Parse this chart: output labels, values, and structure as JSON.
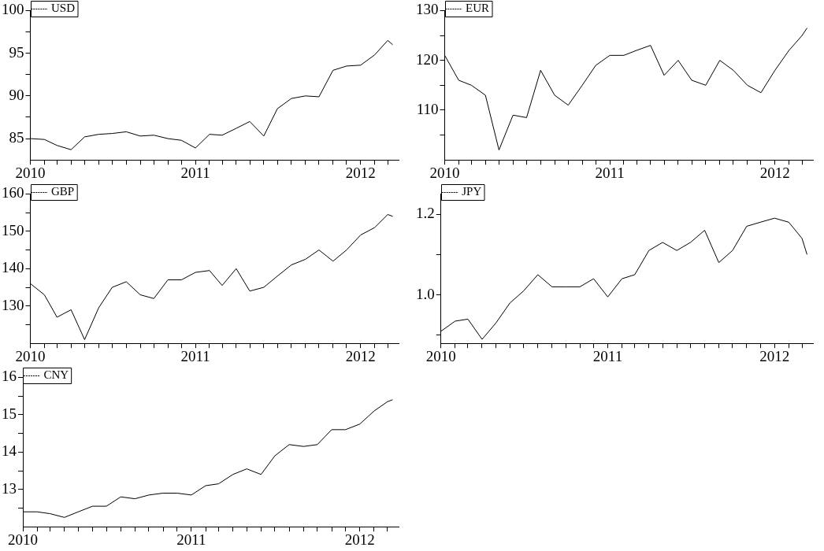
{
  "chart_data": [
    {
      "type": "line",
      "legend": "top left",
      "xlim": [
        "2010-01-01",
        "2012-03-25"
      ],
      "ylim": [
        82.5,
        100
      ],
      "yticks": [
        85,
        {
          "value": 87.5,
          "label": null
        },
        90,
        {
          "value": 92.5,
          "label": null
        },
        95,
        {
          "value": 97.5,
          "label": null
        },
        100
      ],
      "xticks": [
        "2010",
        {
          "value": "2010-02",
          "label": null
        },
        {
          "value": "2010-03",
          "label": null
        },
        {
          "value": "2010-04",
          "label": null
        },
        {
          "value": "2010-05",
          "label": null
        },
        {
          "value": "2010-06",
          "label": null
        },
        {
          "value": "2010-07",
          "label": null
        },
        {
          "value": "2010-08",
          "label": null
        },
        {
          "value": "2010-09",
          "label": null
        },
        {
          "value": "2010-10",
          "label": null
        },
        {
          "value": "2010-11",
          "label": null
        },
        {
          "value": "2010-12",
          "label": null
        },
        "2011",
        {
          "value": "2011-02",
          "label": null
        },
        {
          "value": "2011-03",
          "label": null
        },
        {
          "value": "2011-04",
          "label": null
        },
        {
          "value": "2011-05",
          "label": null
        },
        {
          "value": "2011-06",
          "label": null
        },
        {
          "value": "2011-07",
          "label": null
        },
        {
          "value": "2011-08",
          "label": null
        },
        {
          "value": "2011-09",
          "label": null
        },
        {
          "value": "2011-10",
          "label": null
        },
        {
          "value": "2011-11",
          "label": null
        },
        {
          "value": "2011-12",
          "label": null
        },
        "2012",
        {
          "value": "2012-02",
          "label": null
        },
        {
          "value": "2012-03",
          "label": null
        }
      ],
      "x": [
        "2010-01",
        "2010-02",
        "2010-03",
        "2010-04",
        "2010-05",
        "2010-06",
        "2010-07",
        "2010-08",
        "2010-09",
        "2010-10",
        "2010-11",
        "2010-12",
        "2011-01",
        "2011-02",
        "2011-03",
        "2011-04",
        "2011-05",
        "2011-06",
        "2011-07",
        "2011-08",
        "2011-09",
        "2011-10",
        "2011-11",
        "2011-12",
        "2012-01",
        "2012-02",
        "2012-03",
        "2012-03-12"
      ],
      "series": [
        {
          "name": "USD",
          "color": "#000000",
          "values": [
            85.0,
            84.9,
            84.2,
            83.7,
            85.2,
            85.5,
            85.6,
            85.8,
            85.3,
            85.4,
            85.0,
            84.8,
            83.9,
            85.5,
            85.4,
            86.2,
            87.0,
            85.3,
            88.5,
            89.7,
            90.0,
            89.9,
            93.0,
            93.5,
            93.6,
            94.8,
            96.5,
            96.0
          ]
        }
      ]
    },
    {
      "type": "line",
      "legend": "top left",
      "xlim": [
        "2010-01-01",
        "2012-03-25"
      ],
      "ylim": [
        100,
        130
      ],
      "yticks": [
        {
          "value": 105,
          "label": null
        },
        110,
        {
          "value": 115,
          "label": null
        },
        120,
        {
          "value": 125,
          "label": null
        },
        130
      ],
      "xticks": [
        "2010",
        {
          "value": "2010-02",
          "label": null
        },
        {
          "value": "2010-03",
          "label": null
        },
        {
          "value": "2010-04",
          "label": null
        },
        {
          "value": "2010-05",
          "label": null
        },
        {
          "value": "2010-06",
          "label": null
        },
        {
          "value": "2010-07",
          "label": null
        },
        {
          "value": "2010-08",
          "label": null
        },
        {
          "value": "2010-09",
          "label": null
        },
        {
          "value": "2010-10",
          "label": null
        },
        {
          "value": "2010-11",
          "label": null
        },
        {
          "value": "2010-12",
          "label": null
        },
        "2011",
        {
          "value": "2011-02",
          "label": null
        },
        {
          "value": "2011-03",
          "label": null
        },
        {
          "value": "2011-04",
          "label": null
        },
        {
          "value": "2011-05",
          "label": null
        },
        {
          "value": "2011-06",
          "label": null
        },
        {
          "value": "2011-07",
          "label": null
        },
        {
          "value": "2011-08",
          "label": null
        },
        {
          "value": "2011-09",
          "label": null
        },
        {
          "value": "2011-10",
          "label": null
        },
        {
          "value": "2011-11",
          "label": null
        },
        {
          "value": "2011-12",
          "label": null
        },
        "2012",
        {
          "value": "2012-02",
          "label": null
        },
        {
          "value": "2012-03",
          "label": null
        }
      ],
      "x": [
        "2010-01",
        "2010-02",
        "2010-03",
        "2010-04",
        "2010-05",
        "2010-06",
        "2010-07",
        "2010-08",
        "2010-09",
        "2010-10",
        "2010-11",
        "2010-12",
        "2011-01",
        "2011-02",
        "2011-03",
        "2011-04",
        "2011-05",
        "2011-06",
        "2011-07",
        "2011-08",
        "2011-09",
        "2011-10",
        "2011-11",
        "2011-12",
        "2012-01",
        "2012-02",
        "2012-03",
        "2012-03-12"
      ],
      "series": [
        {
          "name": "EUR",
          "color": "#000000",
          "values": [
            121,
            116,
            115,
            113,
            102,
            109,
            108.5,
            118,
            113,
            111,
            115,
            119,
            121,
            121,
            122,
            123,
            117,
            120,
            116,
            115,
            120,
            118,
            115,
            113.5,
            118,
            122,
            125,
            126.5
          ]
        }
      ]
    },
    {
      "type": "line",
      "legend": "top left",
      "xlim": [
        "2010-01-01",
        "2012-03-25"
      ],
      "ylim": [
        120,
        160
      ],
      "yticks": [
        {
          "value": 125,
          "label": null
        },
        130,
        {
          "value": 135,
          "label": null
        },
        140,
        {
          "value": 145,
          "label": null
        },
        150,
        {
          "value": 155,
          "label": null
        },
        160
      ],
      "xticks": [
        "2010",
        {
          "value": "2010-02",
          "label": null
        },
        {
          "value": "2010-03",
          "label": null
        },
        {
          "value": "2010-04",
          "label": null
        },
        {
          "value": "2010-05",
          "label": null
        },
        {
          "value": "2010-06",
          "label": null
        },
        {
          "value": "2010-07",
          "label": null
        },
        {
          "value": "2010-08",
          "label": null
        },
        {
          "value": "2010-09",
          "label": null
        },
        {
          "value": "2010-10",
          "label": null
        },
        {
          "value": "2010-11",
          "label": null
        },
        {
          "value": "2010-12",
          "label": null
        },
        "2011",
        {
          "value": "2011-02",
          "label": null
        },
        {
          "value": "2011-03",
          "label": null
        },
        {
          "value": "2011-04",
          "label": null
        },
        {
          "value": "2011-05",
          "label": null
        },
        {
          "value": "2011-06",
          "label": null
        },
        {
          "value": "2011-07",
          "label": null
        },
        {
          "value": "2011-08",
          "label": null
        },
        {
          "value": "2011-09",
          "label": null
        },
        {
          "value": "2011-10",
          "label": null
        },
        {
          "value": "2011-11",
          "label": null
        },
        {
          "value": "2011-12",
          "label": null
        },
        "2012",
        {
          "value": "2012-02",
          "label": null
        },
        {
          "value": "2012-03",
          "label": null
        }
      ],
      "x": [
        "2010-01",
        "2010-02",
        "2010-03",
        "2010-04",
        "2010-05",
        "2010-06",
        "2010-07",
        "2010-08",
        "2010-09",
        "2010-10",
        "2010-11",
        "2010-12",
        "2011-01",
        "2011-02",
        "2011-03",
        "2011-04",
        "2011-05",
        "2011-06",
        "2011-07",
        "2011-08",
        "2011-09",
        "2011-10",
        "2011-11",
        "2011-12",
        "2012-01",
        "2012-02",
        "2012-03",
        "2012-03-12"
      ],
      "series": [
        {
          "name": "GBP",
          "color": "#000000",
          "values": [
            136,
            133,
            127,
            129,
            121,
            129.5,
            135,
            136.5,
            133,
            132,
            137,
            137,
            139,
            139.5,
            135.5,
            140,
            134,
            135,
            138,
            141,
            142.5,
            145,
            142,
            145,
            149,
            151,
            154.5,
            154
          ]
        }
      ]
    },
    {
      "type": "line",
      "legend": "top left",
      "xlim": [
        "2010-01-01",
        "2012-03-25"
      ],
      "ylim": [
        0.88,
        1.25
      ],
      "yticks": [
        {
          "value": 0.9,
          "label": null
        },
        {
          "value": 1,
          "label": "1.0"
        },
        {
          "value": 1.1,
          "label": null
        },
        {
          "value": 1.2,
          "label": "1.2"
        }
      ],
      "xticks": [
        "2010",
        {
          "value": "2010-02",
          "label": null
        },
        {
          "value": "2010-03",
          "label": null
        },
        {
          "value": "2010-04",
          "label": null
        },
        {
          "value": "2010-05",
          "label": null
        },
        {
          "value": "2010-06",
          "label": null
        },
        {
          "value": "2010-07",
          "label": null
        },
        {
          "value": "2010-08",
          "label": null
        },
        {
          "value": "2010-09",
          "label": null
        },
        {
          "value": "2010-10",
          "label": null
        },
        {
          "value": "2010-11",
          "label": null
        },
        {
          "value": "2010-12",
          "label": null
        },
        "2011",
        {
          "value": "2011-02",
          "label": null
        },
        {
          "value": "2011-03",
          "label": null
        },
        {
          "value": "2011-04",
          "label": null
        },
        {
          "value": "2011-05",
          "label": null
        },
        {
          "value": "2011-06",
          "label": null
        },
        {
          "value": "2011-07",
          "label": null
        },
        {
          "value": "2011-08",
          "label": null
        },
        {
          "value": "2011-09",
          "label": null
        },
        {
          "value": "2011-10",
          "label": null
        },
        {
          "value": "2011-11",
          "label": null
        },
        {
          "value": "2011-12",
          "label": null
        },
        "2012",
        {
          "value": "2012-02",
          "label": null
        },
        {
          "value": "2012-03",
          "label": null
        }
      ],
      "x": [
        "2010-01",
        "2010-02",
        "2010-03",
        "2010-04",
        "2010-05",
        "2010-06",
        "2010-07",
        "2010-08",
        "2010-09",
        "2010-10",
        "2010-11",
        "2010-12",
        "2011-01",
        "2011-02",
        "2011-03",
        "2011-04",
        "2011-05",
        "2011-06",
        "2011-07",
        "2011-08",
        "2011-09",
        "2011-10",
        "2011-11",
        "2011-12",
        "2012-01",
        "2012-02",
        "2012-03",
        "2012-03-12"
      ],
      "series": [
        {
          "name": "JPY",
          "color": "#000000",
          "values": [
            0.91,
            0.935,
            0.94,
            0.89,
            0.93,
            0.98,
            1.01,
            1.05,
            1.02,
            1.02,
            1.02,
            1.04,
            0.995,
            1.04,
            1.05,
            1.11,
            1.13,
            1.11,
            1.13,
            1.16,
            1.08,
            1.11,
            1.17,
            1.18,
            1.19,
            1.18,
            1.14,
            1.1
          ]
        }
      ]
    },
    {
      "type": "line",
      "legend": "top left",
      "xlim": [
        "2010-01-01",
        "2012-03-25"
      ],
      "ylim": [
        12,
        16
      ],
      "yticks": [
        {
          "value": 12.5,
          "label": null
        },
        13,
        {
          "value": 13.5,
          "label": null
        },
        14,
        {
          "value": 14.5,
          "label": null
        },
        15,
        {
          "value": 15.5,
          "label": null
        },
        16
      ],
      "xticks": [
        "2010",
        {
          "value": "2010-02",
          "label": null
        },
        {
          "value": "2010-03",
          "label": null
        },
        {
          "value": "2010-04",
          "label": null
        },
        {
          "value": "2010-05",
          "label": null
        },
        {
          "value": "2010-06",
          "label": null
        },
        {
          "value": "2010-07",
          "label": null
        },
        {
          "value": "2010-08",
          "label": null
        },
        {
          "value": "2010-09",
          "label": null
        },
        {
          "value": "2010-10",
          "label": null
        },
        {
          "value": "2010-11",
          "label": null
        },
        {
          "value": "2010-12",
          "label": null
        },
        "2011",
        {
          "value": "2011-02",
          "label": null
        },
        {
          "value": "2011-03",
          "label": null
        },
        {
          "value": "2011-04",
          "label": null
        },
        {
          "value": "2011-05",
          "label": null
        },
        {
          "value": "2011-06",
          "label": null
        },
        {
          "value": "2011-07",
          "label": null
        },
        {
          "value": "2011-08",
          "label": null
        },
        {
          "value": "2011-09",
          "label": null
        },
        {
          "value": "2011-10",
          "label": null
        },
        {
          "value": "2011-11",
          "label": null
        },
        {
          "value": "2011-12",
          "label": null
        },
        "2012",
        {
          "value": "2012-02",
          "label": null
        },
        {
          "value": "2012-03",
          "label": null
        }
      ],
      "x": [
        "2010-01",
        "2010-02",
        "2010-03",
        "2010-04",
        "2010-05",
        "2010-06",
        "2010-07",
        "2010-08",
        "2010-09",
        "2010-10",
        "2010-11",
        "2010-12",
        "2011-01",
        "2011-02",
        "2011-03",
        "2011-04",
        "2011-05",
        "2011-06",
        "2011-07",
        "2011-08",
        "2011-09",
        "2011-10",
        "2011-11",
        "2011-12",
        "2012-01",
        "2012-02",
        "2012-03",
        "2012-03-12"
      ],
      "series": [
        {
          "name": "CNY",
          "color": "#000000",
          "values": [
            12.4,
            12.4,
            12.35,
            12.25,
            12.4,
            12.55,
            12.55,
            12.8,
            12.75,
            12.85,
            12.9,
            12.9,
            12.85,
            13.1,
            13.15,
            13.4,
            13.55,
            13.4,
            13.9,
            14.2,
            14.15,
            14.2,
            14.6,
            14.6,
            14.75,
            15.1,
            15.35,
            15.4
          ]
        }
      ]
    }
  ]
}
